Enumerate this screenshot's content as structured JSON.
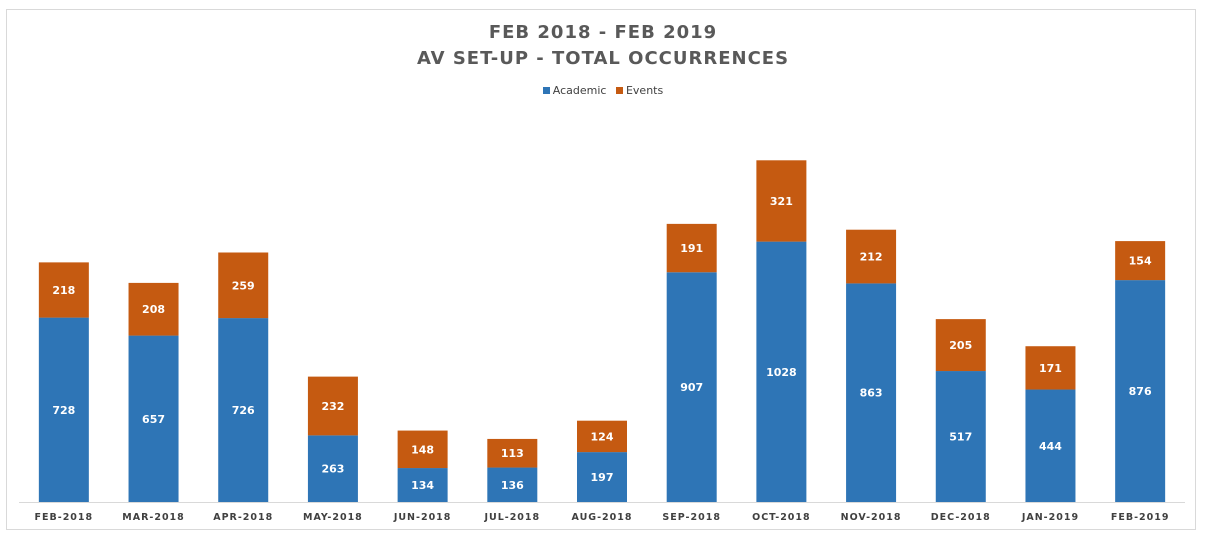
{
  "chart_data": {
    "type": "bar",
    "stacked": true,
    "title": "FEB 2018 - FEB 2019",
    "subtitle": "AV SET-UP - TOTAL OCCURRENCES",
    "xlabel": "",
    "ylabel": "",
    "ylim": [
      0,
      1400
    ],
    "grid": false,
    "legend_position": "top",
    "categories": [
      "FEB-2018",
      "MAR-2018",
      "APR-2018",
      "MAY-2018",
      "JUN-2018",
      "JUL-2018",
      "AUG-2018",
      "SEP-2018",
      "OCT-2018",
      "NOV-2018",
      "DEC-2018",
      "JAN-2019",
      "FEB-2019"
    ],
    "series": [
      {
        "name": "Academic",
        "color": "#2e75b6",
        "values": [
          728,
          657,
          726,
          263,
          134,
          136,
          197,
          907,
          1028,
          863,
          517,
          444,
          876
        ]
      },
      {
        "name": "Events",
        "color": "#c55a11",
        "values": [
          218,
          208,
          259,
          232,
          148,
          113,
          124,
          191,
          321,
          212,
          205,
          171,
          154
        ]
      }
    ]
  }
}
